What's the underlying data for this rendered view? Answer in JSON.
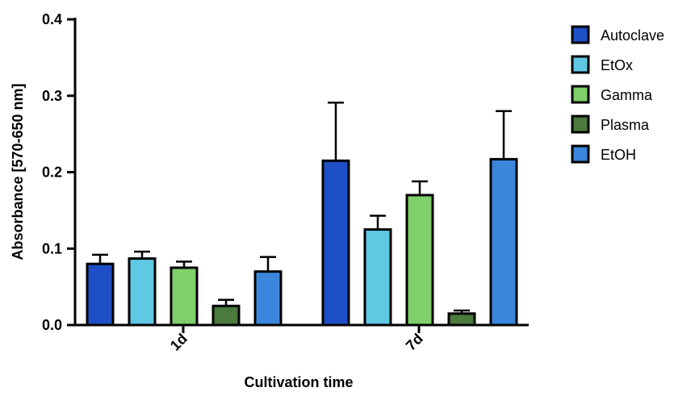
{
  "chart_data": {
    "type": "bar",
    "xlabel": "Cultivation time",
    "ylabel": "Absorbance [570-650 nm]",
    "ylim": [
      0,
      0.4
    ],
    "yticks": [
      "0.0",
      "0.1",
      "0.2",
      "0.3",
      "0.4"
    ],
    "ytick_values": [
      0,
      0.1,
      0.2,
      0.3,
      0.4
    ],
    "categories": [
      "1d",
      "7d"
    ],
    "legend_position": "right",
    "grid": false,
    "series": [
      {
        "name": "Autoclave",
        "color": "#1f4fc6",
        "values": [
          0.08,
          0.215
        ],
        "errors": [
          0.012,
          0.076
        ]
      },
      {
        "name": "EtOx",
        "color": "#5fc8e2",
        "values": [
          0.087,
          0.125
        ],
        "errors": [
          0.009,
          0.018
        ]
      },
      {
        "name": "Gamma",
        "color": "#7fd06a",
        "values": [
          0.075,
          0.17
        ],
        "errors": [
          0.008,
          0.018
        ]
      },
      {
        "name": "Plasma",
        "color": "#4a7a3c",
        "values": [
          0.025,
          0.015
        ],
        "errors": [
          0.008,
          0.004
        ]
      },
      {
        "name": "EtOH",
        "color": "#3a86dc",
        "values": [
          0.07,
          0.217
        ],
        "errors": [
          0.019,
          0.063
        ]
      }
    ]
  }
}
